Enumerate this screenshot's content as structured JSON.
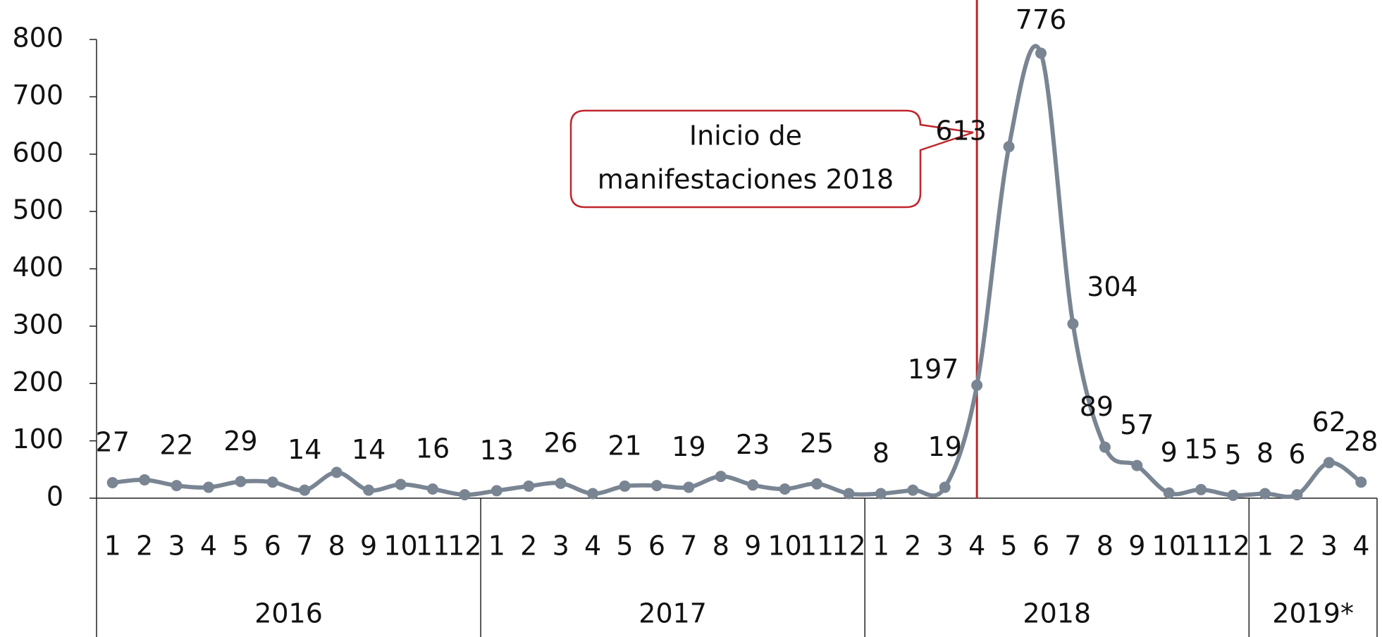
{
  "chart_data": {
    "type": "line",
    "categories": [
      "1",
      "2",
      "3",
      "4",
      "5",
      "6",
      "7",
      "8",
      "9",
      "10",
      "11",
      "12",
      "1",
      "2",
      "3",
      "4",
      "5",
      "6",
      "7",
      "8",
      "9",
      "10",
      "11",
      "12",
      "1",
      "2",
      "3",
      "4",
      "5",
      "6",
      "7",
      "8",
      "9",
      "10",
      "11",
      "12",
      "1",
      "2",
      "3",
      "4"
    ],
    "groups": [
      {
        "name": "2016",
        "size": 12
      },
      {
        "name": "2017",
        "size": 12
      },
      {
        "name": "2018",
        "size": 12
      },
      {
        "name": "2019*",
        "size": 4
      }
    ],
    "series": [
      {
        "color": "#7a8593",
        "values": [
          27,
          32,
          22,
          19,
          29,
          28,
          14,
          45,
          14,
          24,
          16,
          6,
          13,
          21,
          26,
          8,
          21,
          22,
          19,
          38,
          23,
          16,
          25,
          8,
          8,
          14,
          19,
          197,
          613,
          776,
          304,
          89,
          57,
          9,
          15,
          5,
          8,
          6,
          62,
          28
        ],
        "value_labels": [
          "27",
          null,
          "22",
          null,
          "29",
          null,
          "14",
          null,
          "14",
          null,
          "16",
          null,
          "13",
          null,
          "26",
          null,
          "21",
          null,
          "19",
          null,
          "23",
          null,
          "25",
          null,
          "8",
          null,
          "19",
          "197",
          "613",
          "776",
          "304",
          "89",
          "57",
          "9",
          "15",
          "5",
          "8",
          "6",
          "62",
          "28"
        ]
      }
    ],
    "ylim": [
      0,
      800
    ],
    "yticks": [
      0,
      100,
      200,
      300,
      400,
      500,
      600,
      700,
      800
    ],
    "annotation": {
      "lines": [
        "Inicio de",
        "manifestaciones 2018"
      ],
      "category": 27,
      "color": "#c0262c"
    }
  }
}
